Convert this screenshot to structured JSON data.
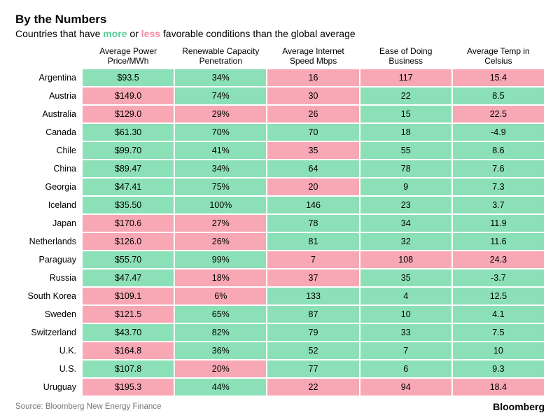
{
  "title": "By the Numbers",
  "subtitle_prefix": "Countries that have ",
  "subtitle_more": "more",
  "subtitle_mid": " or ",
  "subtitle_less": "less",
  "subtitle_suffix": " favorable conditions than the global average",
  "colors": {
    "more": "#8ce0b8",
    "less": "#f8a7b4",
    "more_text": "#5dcf9a",
    "less_text": "#f58aa0",
    "text": "#000000",
    "source": "#777777",
    "background": "#ffffff"
  },
  "columns": [
    "Average Power Price/MWh",
    "Renewable Capacity Penetration",
    "Average Internet Speed Mbps",
    "Ease of Doing Business",
    "Average Temp in Celsius"
  ],
  "rows": [
    {
      "country": "Argentina",
      "cells": [
        {
          "v": "$93.5",
          "f": "more"
        },
        {
          "v": "34%",
          "f": "more"
        },
        {
          "v": "16",
          "f": "less"
        },
        {
          "v": "117",
          "f": "less"
        },
        {
          "v": "15.4",
          "f": "less"
        }
      ]
    },
    {
      "country": "Austria",
      "cells": [
        {
          "v": "$149.0",
          "f": "less"
        },
        {
          "v": "74%",
          "f": "more"
        },
        {
          "v": "30",
          "f": "less"
        },
        {
          "v": "22",
          "f": "more"
        },
        {
          "v": "8.5",
          "f": "more"
        }
      ]
    },
    {
      "country": "Australia",
      "cells": [
        {
          "v": "$129.0",
          "f": "less"
        },
        {
          "v": "29%",
          "f": "less"
        },
        {
          "v": "26",
          "f": "less"
        },
        {
          "v": "15",
          "f": "more"
        },
        {
          "v": "22.5",
          "f": "less"
        }
      ]
    },
    {
      "country": "Canada",
      "cells": [
        {
          "v": "$61.30",
          "f": "more"
        },
        {
          "v": "70%",
          "f": "more"
        },
        {
          "v": "70",
          "f": "more"
        },
        {
          "v": "18",
          "f": "more"
        },
        {
          "v": "-4.9",
          "f": "more"
        }
      ]
    },
    {
      "country": "Chile",
      "cells": [
        {
          "v": "$99.70",
          "f": "more"
        },
        {
          "v": "41%",
          "f": "more"
        },
        {
          "v": "35",
          "f": "less"
        },
        {
          "v": "55",
          "f": "more"
        },
        {
          "v": "8.6",
          "f": "more"
        }
      ]
    },
    {
      "country": "China",
      "cells": [
        {
          "v": "$89.47",
          "f": "more"
        },
        {
          "v": "34%",
          "f": "more"
        },
        {
          "v": "64",
          "f": "more"
        },
        {
          "v": "78",
          "f": "more"
        },
        {
          "v": "7.6",
          "f": "more"
        }
      ]
    },
    {
      "country": "Georgia",
      "cells": [
        {
          "v": "$47.41",
          "f": "more"
        },
        {
          "v": "75%",
          "f": "more"
        },
        {
          "v": "20",
          "f": "less"
        },
        {
          "v": "9",
          "f": "more"
        },
        {
          "v": "7.3",
          "f": "more"
        }
      ]
    },
    {
      "country": "Iceland",
      "cells": [
        {
          "v": "$35.50",
          "f": "more"
        },
        {
          "v": "100%",
          "f": "more"
        },
        {
          "v": "146",
          "f": "more"
        },
        {
          "v": "23",
          "f": "more"
        },
        {
          "v": "3.7",
          "f": "more"
        }
      ]
    },
    {
      "country": "Japan",
      "cells": [
        {
          "v": "$170.6",
          "f": "less"
        },
        {
          "v": "27%",
          "f": "less"
        },
        {
          "v": "78",
          "f": "more"
        },
        {
          "v": "34",
          "f": "more"
        },
        {
          "v": "11.9",
          "f": "more"
        }
      ]
    },
    {
      "country": "Netherlands",
      "cells": [
        {
          "v": "$126.0",
          "f": "less"
        },
        {
          "v": "26%",
          "f": "less"
        },
        {
          "v": "81",
          "f": "more"
        },
        {
          "v": "32",
          "f": "more"
        },
        {
          "v": "11.6",
          "f": "more"
        }
      ]
    },
    {
      "country": "Paraguay",
      "cells": [
        {
          "v": "$55.70",
          "f": "more"
        },
        {
          "v": "99%",
          "f": "more"
        },
        {
          "v": "7",
          "f": "less"
        },
        {
          "v": "108",
          "f": "less"
        },
        {
          "v": "24.3",
          "f": "less"
        }
      ]
    },
    {
      "country": "Russia",
      "cells": [
        {
          "v": "$47.47",
          "f": "more"
        },
        {
          "v": "18%",
          "f": "less"
        },
        {
          "v": "37",
          "f": "less"
        },
        {
          "v": "35",
          "f": "more"
        },
        {
          "v": "-3.7",
          "f": "more"
        }
      ]
    },
    {
      "country": "South Korea",
      "cells": [
        {
          "v": "$109.1",
          "f": "less"
        },
        {
          "v": "6%",
          "f": "less"
        },
        {
          "v": "133",
          "f": "more"
        },
        {
          "v": "4",
          "f": "more"
        },
        {
          "v": "12.5",
          "f": "more"
        }
      ]
    },
    {
      "country": "Sweden",
      "cells": [
        {
          "v": "$121.5",
          "f": "less"
        },
        {
          "v": "65%",
          "f": "more"
        },
        {
          "v": "87",
          "f": "more"
        },
        {
          "v": "10",
          "f": "more"
        },
        {
          "v": "4.1",
          "f": "more"
        }
      ]
    },
    {
      "country": "Switzerland",
      "cells": [
        {
          "v": "$43.70",
          "f": "more"
        },
        {
          "v": "82%",
          "f": "more"
        },
        {
          "v": "79",
          "f": "more"
        },
        {
          "v": "33",
          "f": "more"
        },
        {
          "v": "7.5",
          "f": "more"
        }
      ]
    },
    {
      "country": "U.K.",
      "cells": [
        {
          "v": "$164.8",
          "f": "less"
        },
        {
          "v": "36%",
          "f": "more"
        },
        {
          "v": "52",
          "f": "more"
        },
        {
          "v": "7",
          "f": "more"
        },
        {
          "v": "10",
          "f": "more"
        }
      ]
    },
    {
      "country": "U.S.",
      "cells": [
        {
          "v": "$107.8",
          "f": "more"
        },
        {
          "v": "20%",
          "f": "less"
        },
        {
          "v": "77",
          "f": "more"
        },
        {
          "v": "6",
          "f": "more"
        },
        {
          "v": "9.3",
          "f": "more"
        }
      ]
    },
    {
      "country": "Uruguay",
      "cells": [
        {
          "v": "$195.3",
          "f": "less"
        },
        {
          "v": "44%",
          "f": "more"
        },
        {
          "v": "22",
          "f": "less"
        },
        {
          "v": "94",
          "f": "less"
        },
        {
          "v": "18.4",
          "f": "less"
        }
      ]
    }
  ],
  "source": "Source: Bloomberg New Energy Finance",
  "brand": "Bloomberg"
}
